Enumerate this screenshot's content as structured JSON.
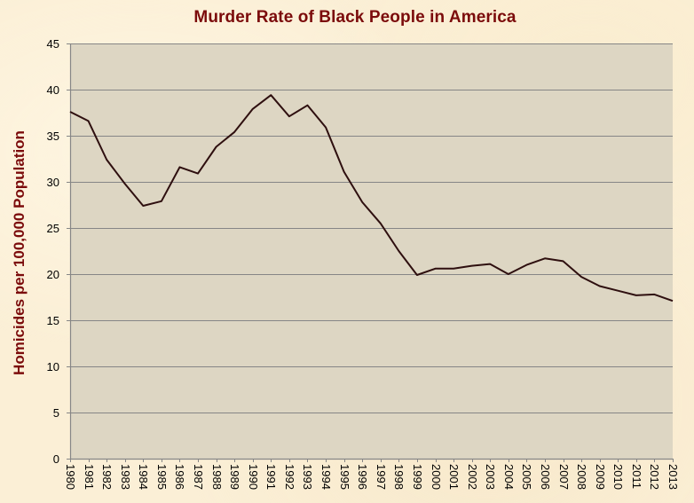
{
  "chart_data": {
    "type": "line",
    "title": "Murder Rate of Black People in America",
    "xlabel": "",
    "ylabel": "Homicides per 100,000 Population",
    "ylim": [
      0,
      45
    ],
    "yticks": [
      0,
      5,
      10,
      15,
      20,
      25,
      30,
      35,
      40,
      45
    ],
    "grid": true,
    "legend": null,
    "categories": [
      "1980",
      "1981",
      "1982",
      "1983",
      "1984",
      "1985",
      "1986",
      "1987",
      "1988",
      "1989",
      "1990",
      "1991",
      "1992",
      "1993",
      "1994",
      "1995",
      "1996",
      "1997",
      "1998",
      "1999",
      "2000",
      "2001",
      "2002",
      "2003",
      "2004",
      "2005",
      "2006",
      "2007",
      "2008",
      "2009",
      "2010",
      "2011",
      "2012",
      "2013"
    ],
    "series": [
      {
        "name": "Homicides per 100,000 Population",
        "values": [
          37.6,
          36.6,
          32.4,
          29.8,
          27.4,
          27.9,
          31.6,
          30.9,
          33.8,
          35.4,
          37.9,
          39.4,
          37.1,
          38.3,
          35.9,
          31.1,
          27.8,
          25.5,
          22.5,
          19.9,
          20.6,
          20.6,
          20.9,
          21.1,
          20.0,
          21.0,
          21.7,
          21.4,
          19.7,
          18.7,
          18.2,
          17.7,
          17.8,
          17.1
        ]
      }
    ]
  },
  "colors": {
    "title": "#7b0b0b",
    "ylabel": "#7b0b0b",
    "line": "#2e0f0f",
    "plot_background": "#ddd6c3",
    "gridline": "#868686",
    "page_background": "#fbefd6"
  }
}
